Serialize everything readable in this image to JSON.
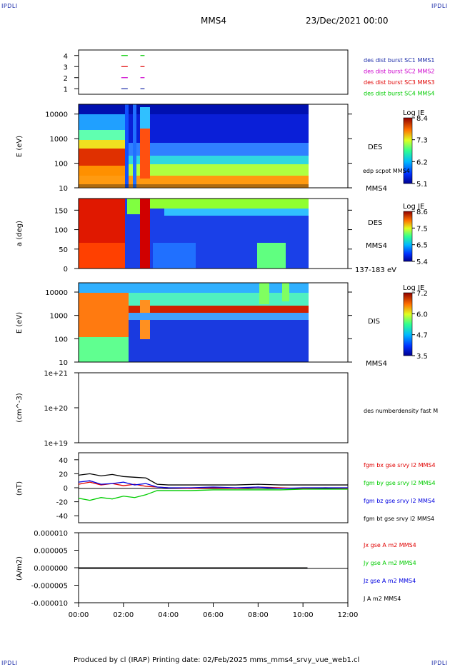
{
  "header": {
    "corner_tl": "IPDLI",
    "corner_tr": "IPDLI",
    "corner_bl": "IPDLI",
    "corner_br": "IPDLI",
    "title": "MMS4",
    "date": "23/Dec/2021 00:00"
  },
  "footer": {
    "text": "Produced by cl (IRAP)   Printing date: 02/Feb/2025   mms_mms4_srvy_vue_web1.cl"
  },
  "colors": {
    "mms1": "#1a2aa8",
    "mms2": "#cc00cc",
    "mms3": "#e00000",
    "mms4": "#00cc00",
    "bx": "#e00000",
    "by": "#00cc00",
    "bz": "#0000e0",
    "bt": "#000000"
  },
  "chart_data": [
    {
      "type": "line",
      "panel": "availability",
      "yticks": [
        "4",
        "3",
        "2",
        "1"
      ],
      "ylim": [
        0.5,
        4.5
      ],
      "series": [
        {
          "name": "des dist burst SC1 MMS1",
          "color": "#1a2aa8",
          "level": 1,
          "segments": [
            [
              2.0,
              2.35
            ],
            [
              2.75,
              3.2
            ]
          ]
        },
        {
          "name": "des dist burst SC2 MMS2",
          "color": "#cc00cc",
          "level": 2,
          "segments": [
            [
              2.0,
              2.35
            ],
            [
              2.75,
              3.2
            ]
          ]
        },
        {
          "name": "des dist burst SC3 MMS3",
          "color": "#e00000",
          "level": 3,
          "segments": [
            [
              2.0,
              2.35
            ],
            [
              2.75,
              3.2
            ]
          ]
        },
        {
          "name": "des dist burst SC4 MMS4",
          "color": "#00cc00",
          "level": 4,
          "segments": [
            [
              2.0,
              2.35
            ],
            [
              2.75,
              3.2
            ]
          ]
        }
      ]
    },
    {
      "type": "heatmap",
      "panel": "des-energy",
      "ylabel": "E (eV)",
      "yscale": "log",
      "ylim": [
        10,
        25000
      ],
      "yticks": [
        "10000",
        "1000",
        "100",
        "10"
      ],
      "right_label": "DES",
      "overlay_label": "edp scpot MMS4",
      "probe_label": "MMS4",
      "colorbar": {
        "title": "Log JE",
        "ticks": [
          "8.4",
          "7.3",
          "6.2",
          "5.1"
        ]
      }
    },
    {
      "type": "heatmap",
      "panel": "des-pitch-angle",
      "ylabel": "a (deg)",
      "ylim": [
        0,
        180
      ],
      "yticks": [
        "150",
        "100",
        "50",
        "0"
      ],
      "right_label": "DES",
      "probe_label": "MMS4",
      "energy_range": "137-183 eV",
      "colorbar": {
        "title": "Log JE",
        "ticks": [
          "8.6",
          "7.5",
          "6.5",
          "5.4"
        ]
      }
    },
    {
      "type": "heatmap",
      "panel": "dis-energy",
      "ylabel": "E (eV)",
      "yscale": "log",
      "ylim": [
        10,
        25000
      ],
      "yticks": [
        "10000",
        "1000",
        "100",
        "10"
      ],
      "right_label": "DIS",
      "probe_label": "MMS4",
      "colorbar": {
        "title": "Log JE",
        "ticks": [
          "7.2",
          "6.0",
          "4.7",
          "3.5"
        ]
      }
    },
    {
      "type": "line",
      "panel": "density",
      "ylabel": "(cm^-3)",
      "yscale": "log",
      "yticks": [
        "1e+21",
        "1e+20",
        "1e+19"
      ],
      "ylim": [
        1e+19,
        1e+21
      ],
      "series": [
        {
          "name": "des numberdensity fast M",
          "color": "#000000"
        }
      ]
    },
    {
      "type": "line",
      "panel": "magnetic-field",
      "ylabel": "(nT)",
      "ylim": [
        -50,
        50
      ],
      "yticks": [
        "40",
        "20",
        "0",
        "-20",
        "-40"
      ],
      "series": [
        {
          "name": "fgm bx gse srvy l2 MMS4",
          "color": "#e00000",
          "x": [
            0,
            0.5,
            1,
            1.5,
            2,
            2.5,
            3,
            3.5,
            4,
            5,
            6,
            7,
            8,
            9,
            10,
            11,
            12
          ],
          "values": [
            5,
            8,
            4,
            6,
            3,
            5,
            2,
            1,
            0,
            -1,
            0,
            -1,
            1,
            0,
            -1,
            0,
            -1
          ]
        },
        {
          "name": "fgm by gse srvy l2 MMS4",
          "color": "#00cc00",
          "x": [
            0,
            0.5,
            1,
            1.5,
            2,
            2.5,
            3,
            3.5,
            4,
            5,
            6,
            7,
            8,
            9,
            10,
            11,
            12
          ],
          "values": [
            -15,
            -18,
            -14,
            -16,
            -12,
            -14,
            -10,
            -4,
            -4,
            -4,
            -3,
            -3,
            -3,
            -3,
            -2,
            -2,
            -2
          ]
        },
        {
          "name": "fgm bz gse srvy l2 MMS4",
          "color": "#0000e0",
          "x": [
            0,
            0.5,
            1,
            1.5,
            2,
            2.5,
            3,
            3.5,
            4,
            5,
            6,
            7,
            8,
            9,
            10,
            11,
            12
          ],
          "values": [
            8,
            10,
            5,
            6,
            8,
            4,
            6,
            1,
            0,
            0,
            1,
            0,
            1,
            -1,
            0,
            0,
            0
          ]
        },
        {
          "name": "fgm bt gse srvy l2 MMS4",
          "color": "#000000",
          "x": [
            0,
            0.5,
            1,
            1.5,
            2,
            2.5,
            3,
            3.5,
            4,
            5,
            6,
            7,
            8,
            9,
            10,
            11,
            12
          ],
          "values": [
            18,
            20,
            17,
            19,
            16,
            15,
            14,
            5,
            4,
            4,
            4,
            4,
            5,
            4,
            4,
            4,
            4
          ]
        }
      ]
    },
    {
      "type": "line",
      "panel": "current-density",
      "ylabel": "(A/m2)",
      "ylim": [
        -1e-05,
        1e-05
      ],
      "yticks": [
        "0.000010",
        "0.000005",
        "0.000000",
        "-0.000005",
        "-0.000010"
      ],
      "series": [
        {
          "name": "Jx gse A m2 MMS4",
          "color": "#e00000",
          "values": [
            0,
            0,
            0,
            0,
            0
          ]
        },
        {
          "name": "Jy gse A m2 MMS4",
          "color": "#00cc00",
          "values": [
            0,
            0,
            0,
            0,
            0
          ]
        },
        {
          "name": "Jz gse A m2 MMS4",
          "color": "#0000e0",
          "values": [
            0,
            0,
            0,
            0,
            0
          ]
        },
        {
          "name": "J A m2 MMS4",
          "color": "#000000",
          "values": [
            0,
            0,
            0,
            0,
            0
          ]
        }
      ]
    }
  ],
  "xaxis": {
    "range_hours": [
      0,
      12
    ],
    "ticks": [
      "00:00",
      "02:00",
      "04:00",
      "06:00",
      "08:00",
      "10:00",
      "12:00"
    ]
  }
}
